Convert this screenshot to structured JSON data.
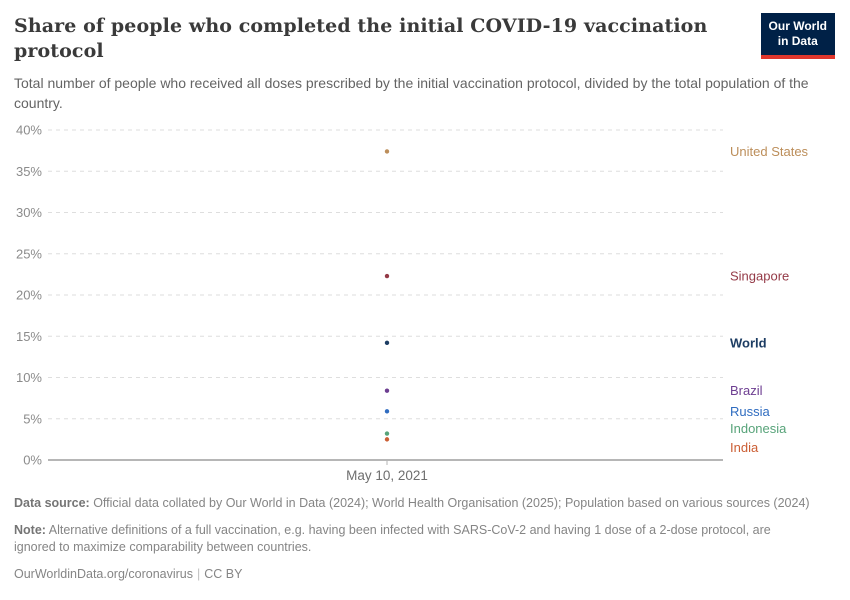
{
  "header": {
    "title": "Share of people who completed the initial COVID-19 vaccination protocol",
    "subtitle": "Total number of people who received all doses prescribed by the initial vaccination protocol, divided by the total population of the country.",
    "logo_line1": "Our World",
    "logo_line2": "in Data",
    "logo_bg_color": "#002147",
    "logo_stripe_color": "#e0362c"
  },
  "chart_data": {
    "type": "scatter",
    "title": "Share of people who completed the initial COVID-19 vaccination protocol",
    "x": [
      "May 10, 2021"
    ],
    "x_tick_label": "May 10, 2021",
    "xlabel": "",
    "ylabel": "",
    "ylim": [
      0,
      40
    ],
    "ytick_step": 5,
    "ytick_suffix": "%",
    "grid": "horizontal-dashed",
    "legend_position": "right-labels",
    "series": [
      {
        "name": "United States",
        "values": [
          37.4
        ],
        "color": "#bc8e5a"
      },
      {
        "name": "Singapore",
        "values": [
          22.3
        ],
        "color": "#943a47"
      },
      {
        "name": "World",
        "values": [
          14.2
        ],
        "color": "#1d3d63",
        "bold": true
      },
      {
        "name": "Brazil",
        "values": [
          8.4
        ],
        "color": "#6d3e91"
      },
      {
        "name": "Russia",
        "values": [
          5.9
        ],
        "color": "#2f6cc0"
      },
      {
        "name": "Indonesia",
        "values": [
          3.2
        ],
        "color": "#57a379"
      },
      {
        "name": "India",
        "values": [
          2.5
        ],
        "color": "#cb5e34"
      }
    ]
  },
  "footer": {
    "datasource_label": "Data source:",
    "datasource_text": " Official data collated by Our World in Data (2024); World Health Organisation (2025); Population based on various sources (2024)",
    "note_label": "Note:",
    "note_text": " Alternative definitions of a full vaccination, e.g. having been infected with SARS-CoV-2 and having 1 dose of a 2-dose protocol, are ignored to maximize comparability between countries.",
    "link": "OurWorldinData.org/coronavirus",
    "separator": "|",
    "license": "CC BY"
  }
}
